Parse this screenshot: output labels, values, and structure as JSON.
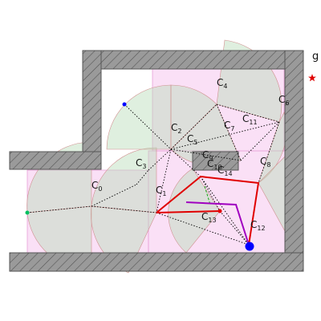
{
  "diagram": {
    "goal_label": "g",
    "cells": [
      {
        "id": "c0",
        "label": "C",
        "sub": "0"
      },
      {
        "id": "c1",
        "label": "C",
        "sub": "1"
      },
      {
        "id": "c2",
        "label": "C",
        "sub": "2"
      },
      {
        "id": "c3",
        "label": "C",
        "sub": "3"
      },
      {
        "id": "c4",
        "label": "C",
        "sub": "4"
      },
      {
        "id": "c5",
        "label": "C",
        "sub": "5"
      },
      {
        "id": "c6",
        "label": "C",
        "sub": "6"
      },
      {
        "id": "c7",
        "label": "C",
        "sub": "7"
      },
      {
        "id": "c8",
        "label": "C",
        "sub": "8"
      },
      {
        "id": "c9",
        "label": "C",
        "sub": "9"
      },
      {
        "id": "c10",
        "label": "C",
        "sub": "10"
      },
      {
        "id": "c11",
        "label": "C",
        "sub": "11"
      },
      {
        "id": "c12",
        "label": "C",
        "sub": "12"
      },
      {
        "id": "c13",
        "label": "C",
        "sub": "13"
      },
      {
        "id": "c14",
        "label": "C",
        "sub": "14"
      }
    ],
    "colors": {
      "wall_fill": "#9a9a9a",
      "wall_stroke": "#555555",
      "cell_pink": "#f5c6ee",
      "fov_green": "#b9dcb9",
      "path_red": "#e00000",
      "path_purple": "#a000c0",
      "graph_edge": "#000000",
      "start_green": "#00c060",
      "robot_blue": "#0000ff",
      "goal_red": "#e00000"
    }
  }
}
